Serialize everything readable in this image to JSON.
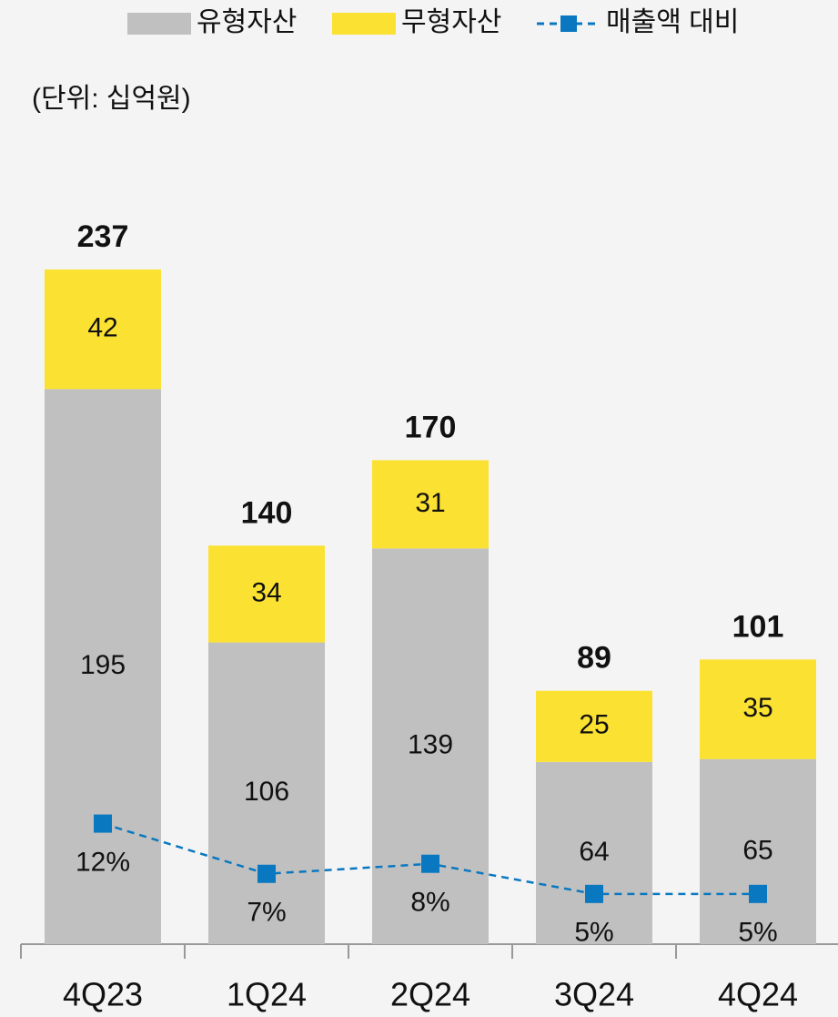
{
  "chart_data": {
    "type": "bar",
    "stacked": true,
    "unit_note": "(단위: 십억원)",
    "categories": [
      "4Q23",
      "1Q24",
      "2Q24",
      "3Q24",
      "4Q24"
    ],
    "series": [
      {
        "name": "유형자산",
        "color": "#c0c0c0",
        "values": [
          195,
          106,
          139,
          64,
          65
        ]
      },
      {
        "name": "무형자산",
        "color": "#fbe232",
        "values": [
          42,
          34,
          31,
          25,
          35
        ]
      },
      {
        "name": "매출액 대비",
        "color": "#0a78c0",
        "type": "line",
        "axis": "y2",
        "values": [
          12,
          7,
          8,
          5,
          5
        ],
        "value_labels": [
          "12%",
          "7%",
          "8%",
          "5%",
          "5%"
        ]
      }
    ],
    "totals": [
      237,
      140,
      170,
      89,
      101
    ],
    "ylim": [
      0,
      300
    ],
    "y2lim": [
      0,
      85
    ]
  }
}
